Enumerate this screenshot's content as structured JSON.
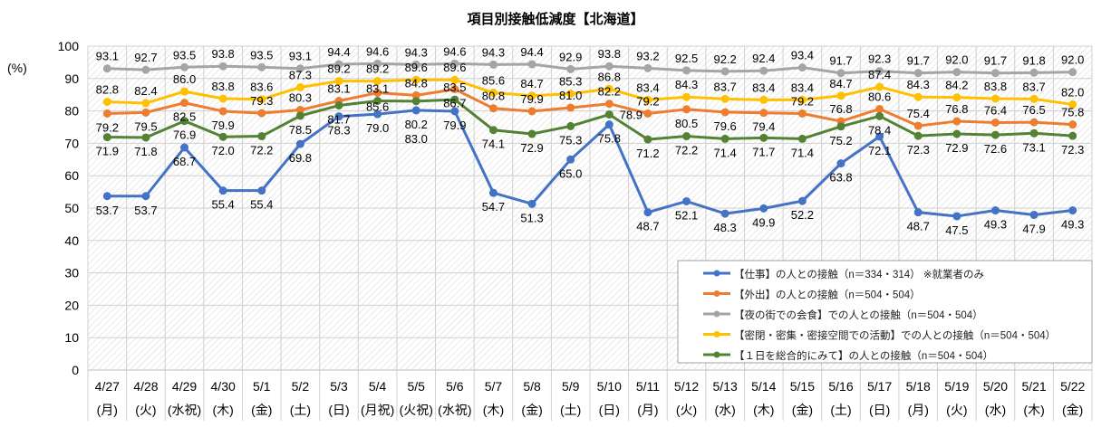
{
  "chart_data": {
    "type": "line",
    "title": "項目別接触低減度【北海道】",
    "ylabel": "(%)",
    "ylim": [
      0,
      100
    ],
    "yticks": [
      0,
      10,
      20,
      30,
      40,
      50,
      60,
      70,
      80,
      90,
      100
    ],
    "grid": true,
    "legend_position": "bottom-right",
    "categories": [
      {
        "date": "4/27",
        "day": "(月)"
      },
      {
        "date": "4/28",
        "day": "(火)"
      },
      {
        "date": "4/29",
        "day": "(水祝)"
      },
      {
        "date": "4/30",
        "day": "(木)"
      },
      {
        "date": "5/1",
        "day": "(金)"
      },
      {
        "date": "5/2",
        "day": "(土)"
      },
      {
        "date": "5/3",
        "day": "(日)"
      },
      {
        "date": "5/4",
        "day": "(月祝)"
      },
      {
        "date": "5/5",
        "day": "(火祝)"
      },
      {
        "date": "5/6",
        "day": "(水祝)"
      },
      {
        "date": "5/7",
        "day": "(木)"
      },
      {
        "date": "5/8",
        "day": "(金)"
      },
      {
        "date": "5/9",
        "day": "(土)"
      },
      {
        "date": "5/10",
        "day": "(日)"
      },
      {
        "date": "5/11",
        "day": "(月)"
      },
      {
        "date": "5/12",
        "day": "(火)"
      },
      {
        "date": "5/13",
        "day": "(水)"
      },
      {
        "date": "5/14",
        "day": "(木)"
      },
      {
        "date": "5/15",
        "day": "(金)"
      },
      {
        "date": "5/16",
        "day": "(土)"
      },
      {
        "date": "5/17",
        "day": "(日)"
      },
      {
        "date": "5/18",
        "day": "(月)"
      },
      {
        "date": "5/19",
        "day": "(火)"
      },
      {
        "date": "5/20",
        "day": "(水)"
      },
      {
        "date": "5/21",
        "day": "(木)"
      },
      {
        "date": "5/22",
        "day": "(金)"
      }
    ],
    "series": [
      {
        "name": "【仕事】の人との接触（n＝334・314） ※就業者のみ",
        "color": "#4472C4",
        "values": [
          53.7,
          53.7,
          68.7,
          55.4,
          55.4,
          69.8,
          78.3,
          79.0,
          80.2,
          79.9,
          54.7,
          51.3,
          65.0,
          75.8,
          48.7,
          52.1,
          48.3,
          49.9,
          52.2,
          63.8,
          72.1,
          48.7,
          47.5,
          49.3,
          47.9,
          49.3
        ]
      },
      {
        "name": "【外出】の人との接触（n＝504・504）",
        "color": "#ED7D31",
        "values": [
          79.2,
          79.5,
          82.5,
          79.9,
          79.3,
          80.3,
          83.1,
          85.6,
          84.8,
          86.7,
          80.8,
          79.9,
          81.0,
          82.2,
          79.2,
          80.5,
          79.6,
          79.4,
          79.2,
          76.8,
          80.6,
          75.4,
          76.8,
          76.4,
          76.5,
          75.8
        ]
      },
      {
        "name": "【夜の街での会食】での人との接触（n＝504・504）",
        "color": "#A5A5A5",
        "values": [
          93.1,
          92.7,
          93.5,
          93.8,
          93.5,
          93.1,
          94.4,
          94.6,
          94.3,
          94.6,
          94.3,
          94.4,
          92.9,
          93.8,
          93.2,
          92.5,
          92.2,
          92.4,
          93.4,
          91.7,
          92.3,
          91.7,
          92.0,
          91.7,
          91.8,
          92.0
        ]
      },
      {
        "name": "【密閉・密集・密接空間での活動】での人との接触（n＝504・504）",
        "color": "#FFC000",
        "values": [
          82.8,
          82.4,
          86.0,
          83.8,
          83.6,
          87.3,
          89.2,
          89.2,
          89.6,
          89.6,
          85.6,
          84.7,
          85.3,
          86.8,
          83.4,
          84.3,
          83.7,
          83.4,
          83.4,
          84.7,
          87.4,
          84.3,
          84.2,
          83.8,
          83.7,
          82.0
        ]
      },
      {
        "name": "【１日を総合的にみて】の人との接触（n＝504・504）",
        "color": "#548235",
        "values": [
          71.9,
          71.8,
          76.9,
          72.0,
          72.2,
          78.5,
          81.7,
          83.1,
          83.0,
          83.5,
          74.1,
          72.9,
          75.3,
          78.9,
          71.2,
          72.2,
          71.4,
          71.7,
          71.4,
          75.2,
          78.4,
          72.3,
          72.9,
          72.6,
          73.1,
          72.3
        ]
      }
    ]
  }
}
